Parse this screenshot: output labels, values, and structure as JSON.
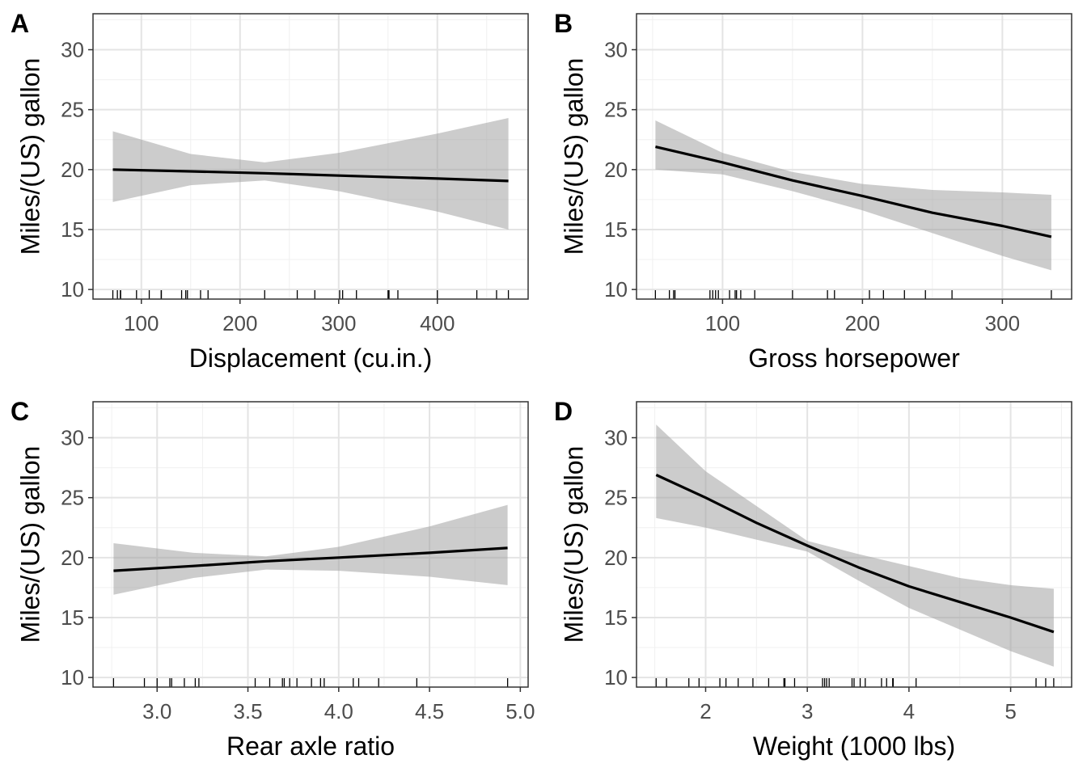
{
  "chart_data": [
    {
      "panel_label": "A",
      "type": "line",
      "xlabel": "Displacement (cu.in.)",
      "ylabel": "Miles/(US) gallon",
      "xlim": [
        51,
        492
      ],
      "ylim": [
        9.2,
        33
      ],
      "xticks": [
        100,
        200,
        300,
        400
      ],
      "yticks": [
        10,
        15,
        20,
        25,
        30
      ],
      "fit": {
        "x": [
          71.1,
          150,
          225,
          300,
          400,
          472
        ],
        "y": [
          20.0,
          19.85,
          19.7,
          19.5,
          19.25,
          19.05
        ]
      },
      "ci_upper": {
        "x": [
          71.1,
          150,
          225,
          300,
          400,
          472
        ],
        "y": [
          23.2,
          21.3,
          20.6,
          21.4,
          23.0,
          24.3
        ]
      },
      "ci_lower": {
        "x": [
          71.1,
          150,
          225,
          300,
          400,
          472
        ],
        "y": [
          17.3,
          18.7,
          19.1,
          18.2,
          16.5,
          15.0
        ]
      },
      "rug": [
        71.1,
        75.7,
        78.7,
        79,
        95.1,
        108,
        120.1,
        120.3,
        140.8,
        145,
        146.7,
        160,
        167.6,
        225,
        258,
        275.8,
        301,
        304,
        318,
        350,
        351,
        360,
        400,
        440,
        460,
        472
      ]
    },
    {
      "panel_label": "B",
      "type": "line",
      "xlabel": "Gross horsepower",
      "ylabel": "Miles/(US) gallon",
      "xlim": [
        38.5,
        349.5
      ],
      "ylim": [
        9.2,
        33
      ],
      "xticks": [
        100,
        200,
        300
      ],
      "yticks": [
        10,
        15,
        20,
        25,
        30
      ],
      "fit": {
        "x": [
          52,
          100,
          150,
          200,
          250,
          300,
          335
        ],
        "y": [
          21.9,
          20.6,
          19.1,
          17.8,
          16.4,
          15.3,
          14.4
        ]
      },
      "ci_upper": {
        "x": [
          52,
          100,
          150,
          200,
          250,
          300,
          335
        ],
        "y": [
          24.1,
          21.4,
          19.8,
          18.8,
          18.3,
          18.1,
          17.9
        ]
      },
      "ci_lower": {
        "x": [
          52,
          100,
          150,
          200,
          250,
          300,
          335
        ],
        "y": [
          20.0,
          19.6,
          18.2,
          16.6,
          14.7,
          12.8,
          11.6
        ]
      },
      "rug": [
        52,
        62,
        65,
        66,
        91,
        93,
        95,
        97,
        105,
        109,
        110,
        113,
        123,
        150,
        175,
        180,
        205,
        215,
        230,
        245,
        264,
        335
      ]
    },
    {
      "panel_label": "C",
      "type": "line",
      "xlabel": "Rear axle ratio",
      "ylabel": "Miles/(US) gallon",
      "xlim": [
        2.647,
        5.043
      ],
      "ylim": [
        9.2,
        33
      ],
      "xticks": [
        3.0,
        3.5,
        4.0,
        4.5,
        5.0
      ],
      "xtick_labels": [
        "3.0",
        "3.5",
        "4.0",
        "4.5",
        "5.0"
      ],
      "yticks": [
        10,
        15,
        20,
        25,
        30
      ],
      "fit": {
        "x": [
          2.76,
          3.2,
          3.6,
          4.0,
          4.5,
          4.93
        ],
        "y": [
          18.9,
          19.3,
          19.7,
          20.0,
          20.4,
          20.8
        ]
      },
      "ci_upper": {
        "x": [
          2.76,
          3.2,
          3.6,
          4.0,
          4.5,
          4.93
        ],
        "y": [
          21.2,
          20.4,
          20.1,
          20.9,
          22.6,
          24.4
        ]
      },
      "ci_lower": {
        "x": [
          2.76,
          3.2,
          3.6,
          4.0,
          4.5,
          4.93
        ],
        "y": [
          16.9,
          18.3,
          19.0,
          18.9,
          18.4,
          17.7
        ]
      },
      "rug": [
        2.76,
        2.93,
        3.0,
        3.07,
        3.08,
        3.15,
        3.21,
        3.23,
        3.54,
        3.62,
        3.69,
        3.7,
        3.73,
        3.77,
        3.85,
        3.9,
        3.92,
        4.08,
        4.11,
        4.22,
        4.43,
        4.93
      ]
    },
    {
      "panel_label": "D",
      "type": "line",
      "xlabel": "Weight (1000 lbs)",
      "ylabel": "Miles/(US) gallon",
      "xlim": [
        1.32,
        5.6
      ],
      "ylim": [
        9.2,
        33
      ],
      "xticks": [
        2,
        3,
        4,
        5
      ],
      "yticks": [
        10,
        15,
        20,
        25,
        30
      ],
      "fit": {
        "x": [
          1.513,
          2.0,
          2.5,
          3.0,
          3.5,
          4.0,
          4.5,
          5.0,
          5.424
        ],
        "y": [
          26.9,
          25.0,
          22.9,
          21.0,
          19.2,
          17.6,
          16.3,
          15.0,
          13.8
        ]
      },
      "ci_upper": {
        "x": [
          1.513,
          2.0,
          2.5,
          3.0,
          3.5,
          4.0,
          4.5,
          5.0,
          5.424
        ],
        "y": [
          31.1,
          27.2,
          24.3,
          21.4,
          20.3,
          19.3,
          18.3,
          17.7,
          17.4
        ]
      },
      "ci_lower": {
        "x": [
          1.513,
          2.0,
          2.5,
          3.0,
          3.5,
          4.0,
          4.5,
          5.0,
          5.424
        ],
        "y": [
          23.3,
          22.5,
          21.5,
          20.5,
          18.1,
          15.8,
          14.0,
          12.2,
          10.9
        ]
      },
      "rug": [
        1.513,
        1.615,
        1.835,
        1.935,
        2.14,
        2.2,
        2.32,
        2.465,
        2.62,
        2.77,
        2.78,
        2.875,
        3.15,
        3.17,
        3.19,
        3.215,
        3.44,
        3.46,
        3.52,
        3.57,
        3.73,
        3.78,
        3.84,
        3.845,
        4.07,
        5.25,
        5.345,
        5.424
      ]
    }
  ]
}
